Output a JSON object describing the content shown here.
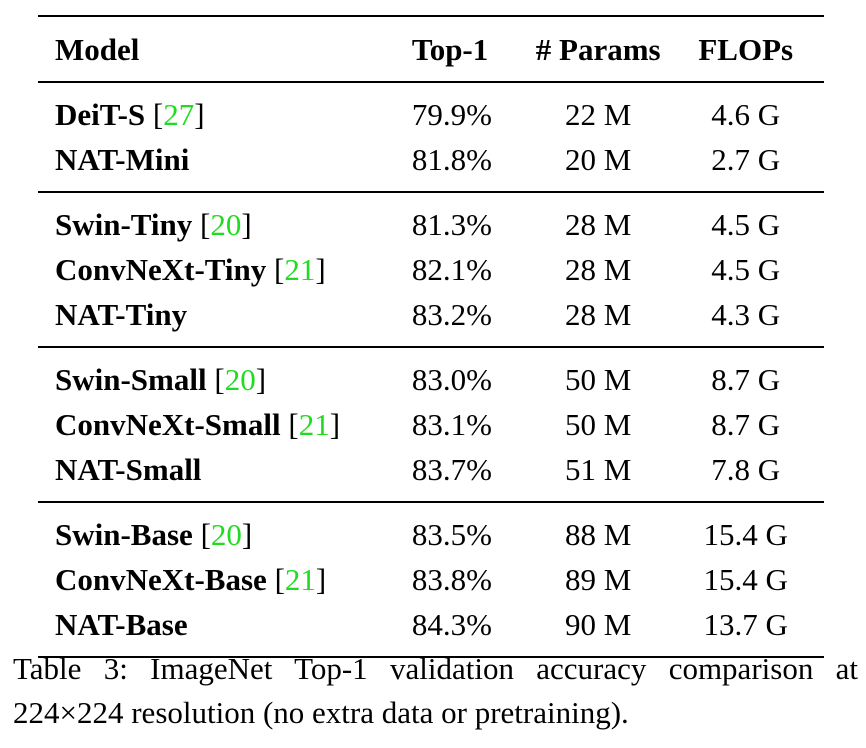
{
  "table": {
    "headers": {
      "model": "Model",
      "top1": "Top-1",
      "params": "# Params",
      "flops": "FLOPs"
    },
    "groups": [
      {
        "rows": [
          {
            "model": "DeiT-S",
            "cite": "27",
            "top1": "79.9%",
            "params": "22 M",
            "flops": "4.6 G"
          },
          {
            "model": "NAT-Mini",
            "cite": "",
            "top1": "81.8%",
            "params": "20 M",
            "flops": "2.7 G"
          }
        ]
      },
      {
        "rows": [
          {
            "model": "Swin-Tiny",
            "cite": "20",
            "top1": "81.3%",
            "params": "28 M",
            "flops": "4.5 G"
          },
          {
            "model": "ConvNeXt-Tiny",
            "cite": "21",
            "top1": "82.1%",
            "params": "28 M",
            "flops": "4.5 G"
          },
          {
            "model": "NAT-Tiny",
            "cite": "",
            "top1": "83.2%",
            "params": "28 M",
            "flops": "4.3 G"
          }
        ]
      },
      {
        "rows": [
          {
            "model": "Swin-Small",
            "cite": "20",
            "top1": "83.0%",
            "params": "50 M",
            "flops": "8.7 G"
          },
          {
            "model": "ConvNeXt-Small",
            "cite": "21",
            "top1": "83.1%",
            "params": "50 M",
            "flops": "8.7 G"
          },
          {
            "model": "NAT-Small",
            "cite": "",
            "top1": "83.7%",
            "params": "51 M",
            "flops": "7.8 G"
          }
        ]
      },
      {
        "rows": [
          {
            "model": "Swin-Base",
            "cite": "20",
            "top1": "83.5%",
            "params": "88 M",
            "flops": "15.4 G"
          },
          {
            "model": "ConvNeXt-Base",
            "cite": "21",
            "top1": "83.8%",
            "params": "89 M",
            "flops": "15.4 G"
          },
          {
            "model": "NAT-Base",
            "cite": "",
            "top1": "84.3%",
            "params": "90 M",
            "flops": "13.7 G"
          }
        ]
      }
    ]
  },
  "caption": "Table 3: ImageNet Top-1 validation accuracy comparison at 224×224 resolution (no extra data or pretraining).",
  "colors": {
    "citation": "#1fdc1f",
    "text": "#000000"
  }
}
